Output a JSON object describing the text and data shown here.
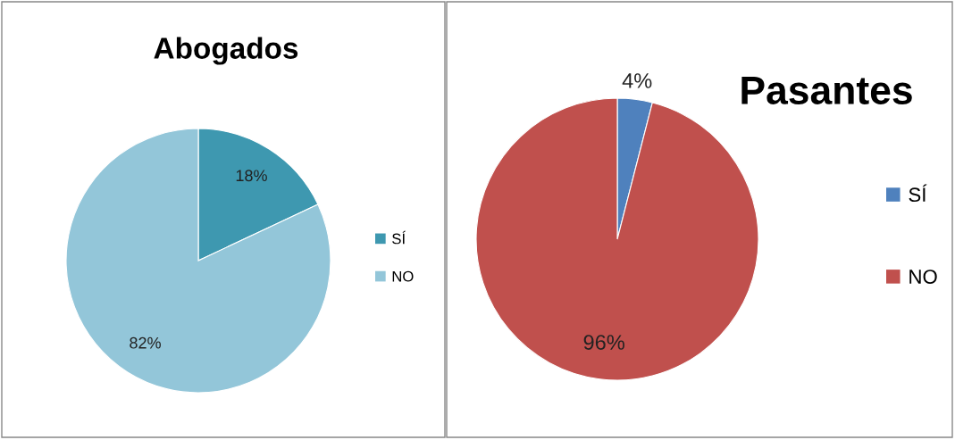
{
  "chart_data": [
    {
      "type": "pie",
      "title": "Abogados",
      "categories": [
        "SÍ",
        "NO"
      ],
      "values": [
        18,
        82
      ],
      "value_labels": [
        "18%",
        "82%"
      ],
      "colors": [
        "#3e98b0",
        "#93c6d9"
      ],
      "legend": "right"
    },
    {
      "type": "pie",
      "title": "Pasantes",
      "categories": [
        "SÍ",
        "NO"
      ],
      "values": [
        4,
        96
      ],
      "value_labels": [
        "4%",
        "96%"
      ],
      "colors": [
        "#4f81bd",
        "#c0504d"
      ],
      "legend": "right"
    }
  ]
}
